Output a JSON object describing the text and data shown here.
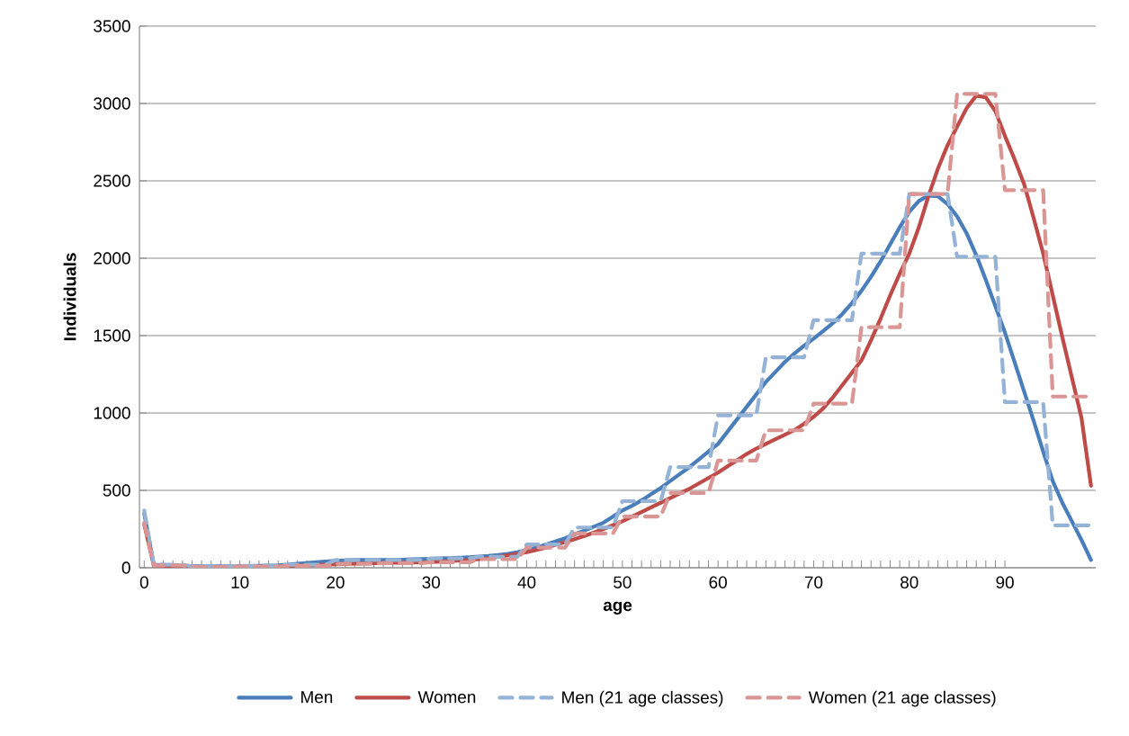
{
  "chart_data": {
    "type": "line",
    "xlabel": "age",
    "ylabel": "Individuals",
    "x": [
      0,
      1,
      2,
      3,
      4,
      5,
      6,
      7,
      8,
      9,
      10,
      11,
      12,
      13,
      14,
      15,
      16,
      17,
      18,
      19,
      20,
      21,
      22,
      23,
      24,
      25,
      26,
      27,
      28,
      29,
      30,
      31,
      32,
      33,
      34,
      35,
      36,
      37,
      38,
      39,
      40,
      41,
      42,
      43,
      44,
      45,
      46,
      47,
      48,
      49,
      50,
      51,
      52,
      53,
      54,
      55,
      56,
      57,
      58,
      59,
      60,
      61,
      62,
      63,
      64,
      65,
      66,
      67,
      68,
      69,
      70,
      71,
      72,
      73,
      74,
      75,
      76,
      77,
      78,
      79,
      80,
      81,
      82,
      83,
      84,
      85,
      86,
      87,
      88,
      89,
      90,
      91,
      92,
      93,
      94,
      95,
      96,
      97,
      98,
      99
    ],
    "xlim": [
      -0.5,
      99.5
    ],
    "xticks": [
      0,
      10,
      20,
      30,
      40,
      50,
      60,
      70,
      80,
      90
    ],
    "ylim": [
      0,
      3500
    ],
    "yticks": [
      0,
      500,
      1000,
      1500,
      2000,
      2500,
      3000,
      3500
    ],
    "grid": "y",
    "legend": "bottom",
    "series": [
      {
        "name": "Men",
        "color": "#4a7ebb",
        "line_style": "solid",
        "values": [
          350,
          20,
          18,
          15,
          12,
          10,
          10,
          10,
          10,
          10,
          10,
          11,
          12,
          14,
          16,
          20,
          25,
          30,
          35,
          40,
          45,
          48,
          50,
          50,
          50,
          50,
          51,
          52,
          54,
          56,
          58,
          60,
          62,
          65,
          68,
          72,
          76,
          82,
          90,
          100,
          115,
          130,
          150,
          170,
          190,
          215,
          240,
          265,
          290,
          330,
          370,
          400,
          435,
          475,
          515,
          560,
          605,
          650,
          700,
          750,
          800,
          880,
          960,
          1040,
          1120,
          1200,
          1265,
          1330,
          1385,
          1435,
          1480,
          1530,
          1580,
          1640,
          1710,
          1790,
          1880,
          1980,
          2090,
          2200,
          2300,
          2370,
          2405,
          2400,
          2350,
          2270,
          2160,
          2020,
          1860,
          1690,
          1520,
          1330,
          1140,
          950,
          750,
          560,
          420,
          300,
          180,
          50
        ]
      },
      {
        "name": "Women",
        "color": "#be4b48",
        "line_style": "solid",
        "values": [
          280,
          15,
          12,
          10,
          8,
          6,
          5,
          5,
          5,
          6,
          6,
          7,
          8,
          9,
          10,
          12,
          14,
          16,
          18,
          20,
          22,
          24,
          26,
          28,
          30,
          31,
          32,
          33,
          34,
          35,
          37,
          40,
          43,
          47,
          51,
          56,
          62,
          70,
          80,
          90,
          100,
          115,
          130,
          148,
          166,
          185,
          205,
          227,
          250,
          275,
          300,
          330,
          360,
          390,
          420,
          450,
          480,
          510,
          545,
          580,
          615,
          655,
          695,
          735,
          770,
          800,
          830,
          860,
          890,
          930,
          975,
          1030,
          1100,
          1180,
          1260,
          1340,
          1470,
          1610,
          1760,
          1900,
          2030,
          2200,
          2400,
          2580,
          2730,
          2850,
          2970,
          3050,
          3040,
          2950,
          2790,
          2640,
          2480,
          2260,
          2030,
          1760,
          1490,
          1230,
          970,
          530
        ]
      },
      {
        "name": "Men (21 age classes)",
        "color": "#95b3d7",
        "line_style": "dashed",
        "values": [
          370,
          20,
          20,
          20,
          20,
          10,
          10,
          10,
          10,
          10,
          12,
          12,
          12,
          12,
          12,
          20,
          20,
          20,
          20,
          20,
          50,
          50,
          50,
          50,
          50,
          50,
          50,
          50,
          50,
          50,
          60,
          60,
          60,
          60,
          60,
          70,
          70,
          70,
          70,
          70,
          150,
          150,
          150,
          150,
          150,
          260,
          260,
          260,
          260,
          260,
          430,
          430,
          430,
          430,
          430,
          650,
          650,
          650,
          650,
          650,
          985,
          985,
          985,
          985,
          985,
          1360,
          1360,
          1360,
          1360,
          1360,
          1600,
          1600,
          1600,
          1600,
          1600,
          2030,
          2030,
          2030,
          2030,
          2030,
          2415,
          2415,
          2415,
          2415,
          2415,
          2010,
          2010,
          2010,
          2010,
          2010,
          1070,
          1070,
          1070,
          1070,
          1070,
          274,
          274,
          274,
          274,
          274
        ]
      },
      {
        "name": "Women (21 age classes)",
        "color": "#d99694",
        "line_style": "dashed",
        "values": [
          290,
          15,
          15,
          15,
          15,
          5,
          5,
          5,
          5,
          5,
          8,
          8,
          8,
          8,
          8,
          12,
          12,
          12,
          12,
          12,
          25,
          25,
          25,
          25,
          25,
          30,
          30,
          30,
          30,
          30,
          35,
          35,
          35,
          35,
          35,
          55,
          55,
          55,
          55,
          55,
          130,
          130,
          130,
          130,
          130,
          221,
          221,
          221,
          221,
          221,
          331,
          331,
          331,
          331,
          331,
          483,
          483,
          483,
          483,
          483,
          692,
          692,
          692,
          692,
          692,
          888,
          888,
          888,
          888,
          888,
          1060,
          1060,
          1060,
          1060,
          1060,
          1554,
          1554,
          1554,
          1554,
          1554,
          2415,
          2415,
          2415,
          2415,
          2415,
          3062,
          3062,
          3062,
          3062,
          3062,
          2440,
          2440,
          2440,
          2440,
          2440,
          1106,
          1106,
          1106,
          1106,
          1106
        ]
      }
    ]
  }
}
